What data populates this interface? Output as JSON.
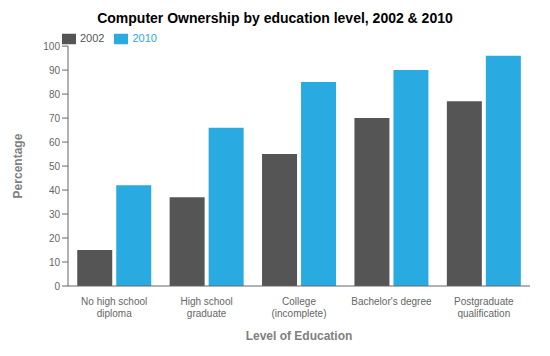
{
  "chart_data": {
    "type": "bar",
    "title": "Computer Ownership by education level, 2002 & 2010",
    "xlabel": "Level of Education",
    "ylabel": "Percentage",
    "categories": [
      "No high school\ndiploma",
      "High school\ngraduate",
      "College\n(incomplete)",
      "Bachelor's degree",
      "Postgraduate\nqualification"
    ],
    "series": [
      {
        "name": "2002",
        "color": "#555555",
        "values": [
          15,
          37,
          55,
          70,
          77
        ]
      },
      {
        "name": "2010",
        "color": "#29ABE2",
        "values": [
          42,
          66,
          85,
          90,
          96
        ]
      }
    ],
    "ylim": [
      0,
      100
    ],
    "yticks": [
      0,
      10,
      20,
      30,
      40,
      50,
      60,
      70,
      80,
      90,
      100
    ],
    "grid": false,
    "legend": "top"
  }
}
